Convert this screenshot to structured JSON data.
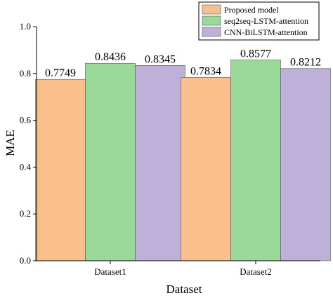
{
  "chart_data": {
    "type": "bar",
    "title": "",
    "xlabel": "Dataset",
    "ylabel": "MAE",
    "ylim": [
      0,
      1.0
    ],
    "yticks": [
      "0.0",
      "0.2",
      "0.4",
      "0.6",
      "0.8",
      "1.0"
    ],
    "grid": false,
    "legend_position": "top-right",
    "categories": [
      "Dataset1",
      "Dataset2"
    ],
    "series": [
      {
        "name": "Proposed model",
        "color": "#F9C08E",
        "values": [
          0.7749,
          0.7834
        ],
        "labels": [
          "0.7749",
          "0.7834"
        ]
      },
      {
        "name": "seq2seq-LSTM-attention",
        "color": "#9BD99B",
        "values": [
          0.8436,
          0.8577
        ],
        "labels": [
          "0.8436",
          "0.8577"
        ]
      },
      {
        "name": "CNN-BiLSTM-attention",
        "color": "#BFB0DA",
        "values": [
          0.8345,
          0.8212
        ],
        "labels": [
          "0.8345",
          "0.8212"
        ]
      }
    ]
  }
}
